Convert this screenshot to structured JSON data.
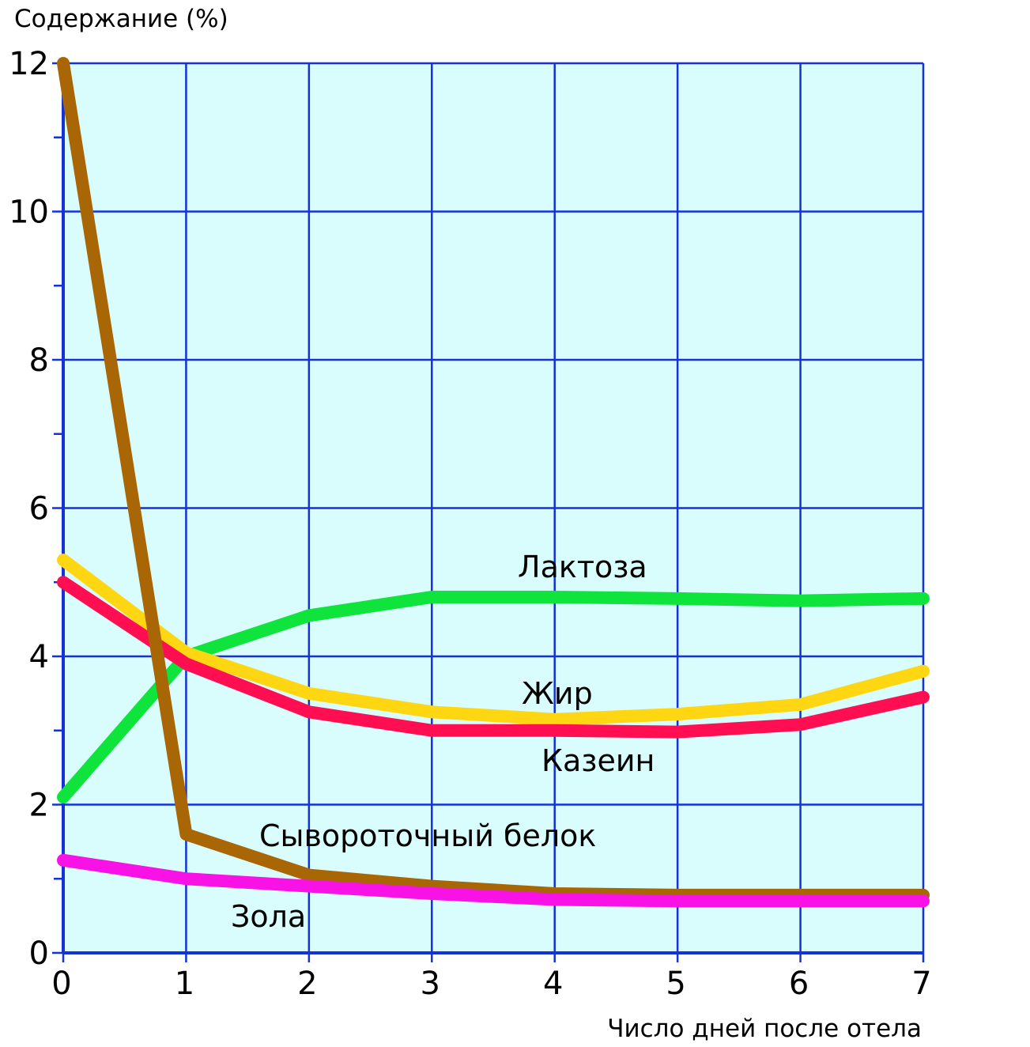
{
  "chart_data": {
    "type": "line",
    "ylabel": "Содержание (%)",
    "xlabel": "Число дней после отела",
    "x": [
      0,
      1,
      2,
      3,
      4,
      5,
      6,
      7
    ],
    "xlim": [
      0,
      7
    ],
    "ylim": [
      0,
      12
    ],
    "x_ticks": [
      "0",
      "1",
      "2",
      "3",
      "4",
      "5",
      "6",
      "7"
    ],
    "y_ticks": [
      "0",
      "2",
      "4",
      "6",
      "8",
      "10",
      "12"
    ],
    "grid": true,
    "plot_background": "#d9fdfd",
    "grid_color": "#1432d8",
    "series": [
      {
        "name": "Лактоза",
        "color": "#0ee43b",
        "values": [
          2.1,
          4.0,
          4.55,
          4.8,
          4.8,
          4.78,
          4.75,
          4.78
        ]
      },
      {
        "name": "Жир",
        "color": "#ffd612",
        "values": [
          5.3,
          4.05,
          3.5,
          3.25,
          3.15,
          3.22,
          3.35,
          3.8
        ]
      },
      {
        "name": "Казеин",
        "color": "#ff0f52",
        "values": [
          5.0,
          3.9,
          3.25,
          3.0,
          3.0,
          2.98,
          3.08,
          3.45
        ]
      },
      {
        "name": "Сывороточный белок",
        "color": "#a86605",
        "values": [
          12.0,
          1.6,
          1.05,
          0.9,
          0.8,
          0.78,
          0.78,
          0.78
        ]
      },
      {
        "name": "Зола",
        "color": "#f812e5",
        "values": [
          1.25,
          1.0,
          0.9,
          0.8,
          0.72,
          0.7,
          0.7,
          0.7
        ]
      }
    ]
  }
}
